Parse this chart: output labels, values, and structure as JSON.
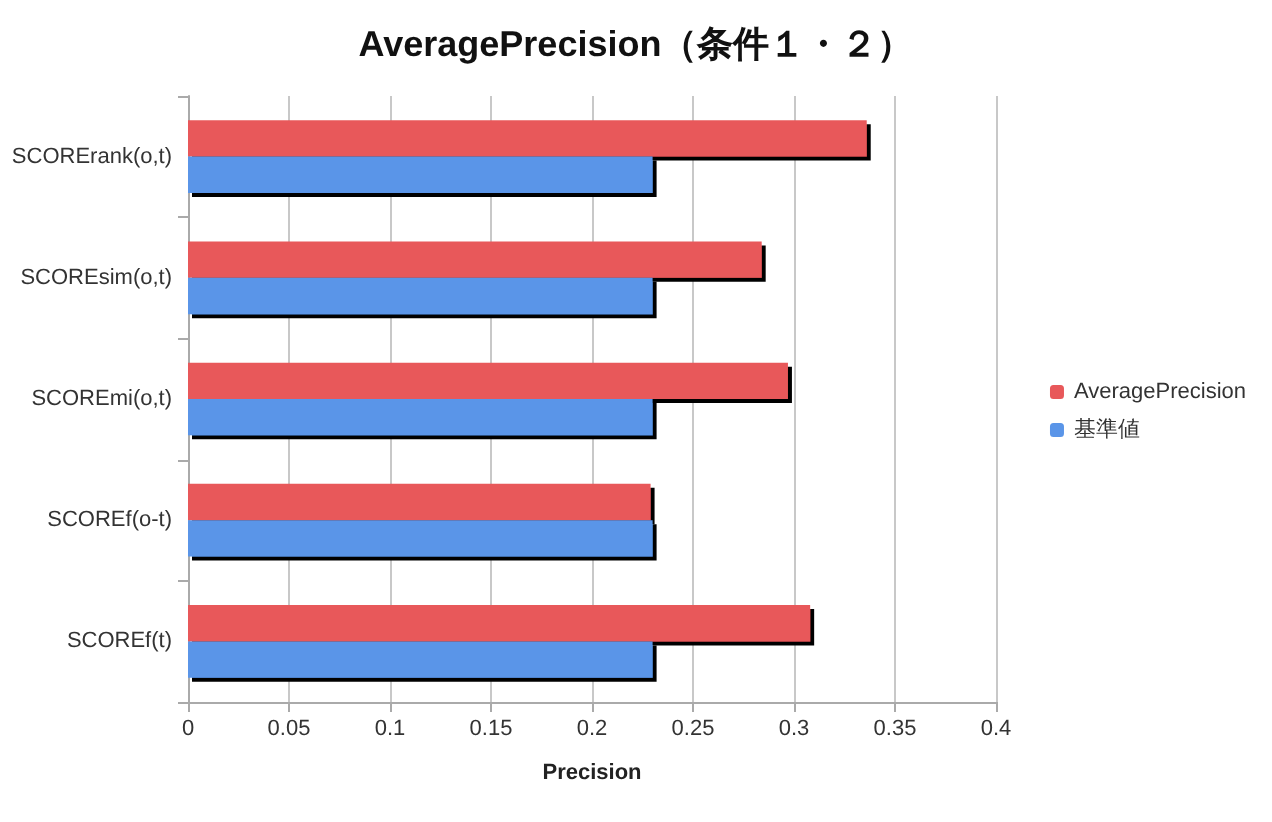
{
  "chart_data": {
    "type": "bar",
    "orientation": "horizontal",
    "title": "AveragePrecision（条件１・２）",
    "xlabel": "Precision",
    "categories": [
      "SCORErank(o,t)",
      "SCOREsim(o,t)",
      "SCOREmi(o,t)",
      "SCOREf(o-t)",
      "SCOREf(t)"
    ],
    "series": [
      {
        "name": "AveragePrecision",
        "color": "#e8585a",
        "values": [
          0.336,
          0.284,
          0.297,
          0.229,
          0.308
        ]
      },
      {
        "name": "基準値",
        "color": "#5a95e8",
        "values": [
          0.23,
          0.23,
          0.23,
          0.23,
          0.23
        ]
      }
    ],
    "xlim": [
      0,
      0.4
    ],
    "xticks": [
      0,
      0.05,
      0.1,
      0.15,
      0.2,
      0.25,
      0.3,
      0.35,
      0.4
    ],
    "grid": "x",
    "legend": "right"
  }
}
